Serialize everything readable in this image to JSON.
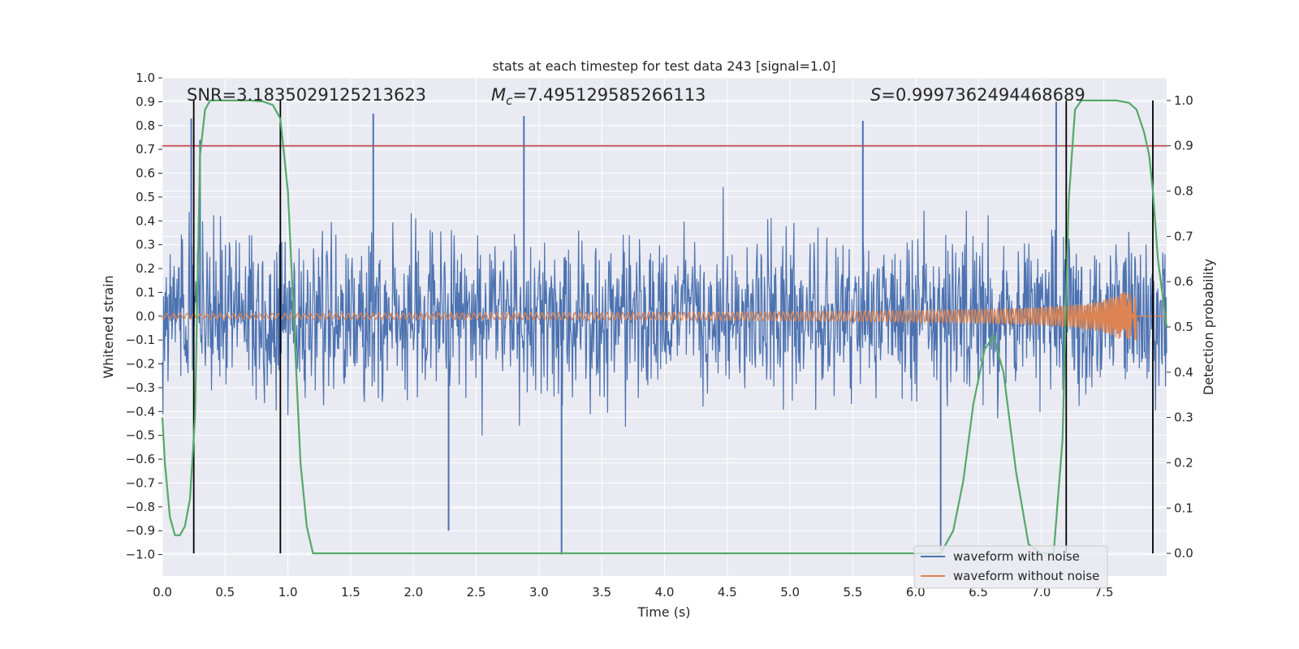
{
  "chart_data": {
    "type": "line",
    "title": "stats at each timestep for test data 243 [signal=1.0]",
    "xlabel": "Time (s)",
    "ylabel": "Whitened strain",
    "ylabel_right": "Detection probability",
    "xlim": [
      0.0,
      8.0
    ],
    "ylim": [
      -1.09,
      1.0
    ],
    "ylim_right": [
      -0.05,
      1.05
    ],
    "grid": true,
    "legend_position": "bottom-right",
    "x_ticks": [
      "0.0",
      "0.5",
      "1.0",
      "1.5",
      "2.0",
      "2.5",
      "3.0",
      "3.5",
      "4.0",
      "4.5",
      "5.0",
      "5.5",
      "6.0",
      "6.5",
      "7.0",
      "7.5"
    ],
    "y_ticks": [
      "1.0",
      "0.9",
      "0.8",
      "0.7",
      "0.6",
      "0.5",
      "0.4",
      "0.3",
      "0.2",
      "0.1",
      "0.0",
      "−0.1",
      "−0.2",
      "−0.3",
      "−0.4",
      "−0.5",
      "−0.6",
      "−0.7",
      "−0.8",
      "−0.9",
      "−1.0"
    ],
    "y_right_ticks": [
      "1.0",
      "0.9",
      "0.8",
      "0.7",
      "0.6",
      "0.5",
      "0.4",
      "0.3",
      "0.2",
      "0.1",
      "0.0"
    ],
    "annotations": {
      "snr": "SNR=3.1835029125213623",
      "mc_symbol": "M",
      "mc_sub": "c",
      "mc_value": "=7.495129585266113",
      "s_symbol": "S",
      "s_value": "=0.9997362494468689"
    },
    "threshold": {
      "value": 0.9,
      "axis": "right"
    },
    "event_markers": [
      0.25,
      0.94,
      7.2,
      7.89
    ],
    "series": [
      {
        "name": "waveform with noise",
        "color": "#4c72b0",
        "amplitude_envelope": 0.55,
        "notable_peaks": [
          {
            "x": 0.23,
            "y": 0.83
          },
          {
            "x": 0.3,
            "y": 0.74
          },
          {
            "x": 1.68,
            "y": 0.85
          },
          {
            "x": 2.88,
            "y": 0.84
          },
          {
            "x": 5.58,
            "y": 0.82
          },
          {
            "x": 7.12,
            "y": 0.9
          },
          {
            "x": 3.18,
            "y": -1.0
          },
          {
            "x": 6.2,
            "y": -0.98
          },
          {
            "x": 2.28,
            "y": -0.9
          }
        ]
      },
      {
        "name": "waveform without noise",
        "color": "#dd8452",
        "chirp_end": 7.76,
        "peak_amplitude": 0.1
      },
      {
        "name": "Detection probability",
        "color": "#55a868",
        "axis": "right",
        "x": [
          0.0,
          0.02,
          0.06,
          0.1,
          0.14,
          0.18,
          0.22,
          0.26,
          0.3,
          0.34,
          0.38,
          0.42,
          0.5,
          0.6,
          0.7,
          0.8,
          0.88,
          0.94,
          1.0,
          1.05,
          1.1,
          1.15,
          1.2,
          1.3,
          1.5,
          2.0,
          3.0,
          4.0,
          5.0,
          5.8,
          6.2,
          6.3,
          6.38,
          6.46,
          6.55,
          6.62,
          6.7,
          6.8,
          6.9,
          7.0,
          7.1,
          7.17,
          7.22,
          7.27,
          7.32,
          7.4,
          7.5,
          7.6,
          7.7,
          7.76,
          7.82,
          7.86,
          7.89,
          7.93,
          8.0
        ],
        "y": [
          0.3,
          0.2,
          0.08,
          0.04,
          0.04,
          0.06,
          0.12,
          0.3,
          0.88,
          0.98,
          1.0,
          1.0,
          1.0,
          1.0,
          1.0,
          0.998,
          0.99,
          0.96,
          0.8,
          0.5,
          0.2,
          0.06,
          0.0,
          0.0,
          0.0,
          0.0,
          0.0,
          0.0,
          0.0,
          0.0,
          0.0,
          0.05,
          0.16,
          0.33,
          0.45,
          0.48,
          0.4,
          0.18,
          0.02,
          0.0,
          0.0,
          0.25,
          0.78,
          0.98,
          1.0,
          1.0,
          1.0,
          1.0,
          0.995,
          0.98,
          0.93,
          0.88,
          0.8,
          0.65,
          0.5
        ]
      }
    ]
  }
}
